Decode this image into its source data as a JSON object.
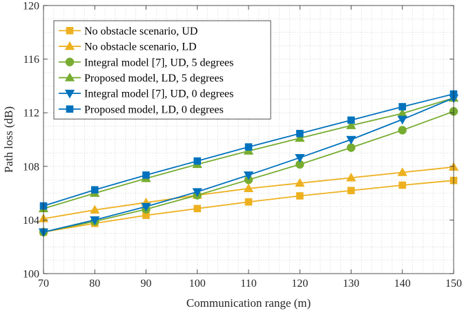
{
  "chart_data": {
    "type": "line",
    "title": "",
    "xlabel": "Communication range (m)",
    "ylabel": "Path loss (dB)",
    "x": [
      70,
      80,
      90,
      100,
      110,
      120,
      130,
      140,
      150
    ],
    "xlim": [
      70,
      150
    ],
    "ylim": [
      100,
      120
    ],
    "xticks": [
      70,
      80,
      90,
      100,
      110,
      120,
      130,
      140,
      150
    ],
    "yticks": [
      100,
      104,
      108,
      112,
      116,
      120
    ],
    "grid": true,
    "legend_position": "top-left",
    "series": [
      {
        "name": "No obstacle scenario, UD",
        "color": "#EDB120",
        "marker": "square",
        "values": [
          103.1,
          103.75,
          104.35,
          104.85,
          105.35,
          105.8,
          106.2,
          106.6,
          106.95
        ]
      },
      {
        "name": "No obstacle scenario, LD",
        "color": "#EDB120",
        "marker": "triangle-up",
        "values": [
          104.1,
          104.75,
          105.3,
          105.85,
          106.35,
          106.75,
          107.15,
          107.55,
          107.95
        ]
      },
      {
        "name": "Integral model [7], UD, 5 degrees",
        "color": "#77AC30",
        "marker": "circle",
        "values": [
          103.1,
          103.9,
          104.8,
          105.85,
          107.0,
          108.15,
          109.4,
          110.7,
          112.1
        ]
      },
      {
        "name": "Proposed model, LD, 5 degrees",
        "color": "#77AC30",
        "marker": "triangle-up",
        "values": [
          104.85,
          106.0,
          107.1,
          108.15,
          109.15,
          110.1,
          111.05,
          111.95,
          113.1
        ]
      },
      {
        "name": "Integral model [7], UD, 0 degrees",
        "color": "#0072BD",
        "marker": "triangle-down",
        "values": [
          103.1,
          104.0,
          105.0,
          106.1,
          107.35,
          108.65,
          110.0,
          111.5,
          113.1
        ]
      },
      {
        "name": "Proposed model, LD, 0 degrees",
        "color": "#0072BD",
        "marker": "square",
        "values": [
          105.05,
          106.25,
          107.35,
          108.4,
          109.45,
          110.45,
          111.45,
          112.45,
          113.4
        ]
      }
    ]
  }
}
